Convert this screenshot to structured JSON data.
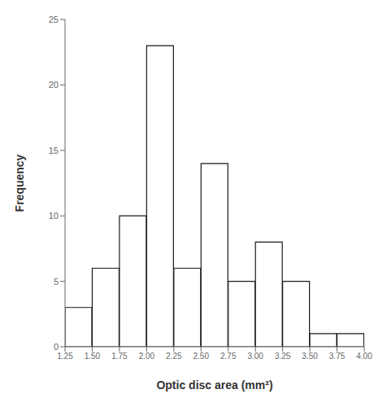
{
  "chart_data": {
    "type": "histogram",
    "xlabel": "Optic disc area (mm²)",
    "ylabel": "Frequency",
    "bins": [
      1.25,
      1.5,
      1.75,
      2.0,
      2.25,
      2.5,
      2.75,
      3.0,
      3.25,
      3.5,
      3.75,
      4.0
    ],
    "values": [
      3,
      6,
      10,
      23,
      6,
      14,
      5,
      8,
      5,
      1,
      1
    ],
    "color": "#ffffff",
    "xlim": [
      1.25,
      4.0
    ],
    "ylim": [
      0,
      25
    ],
    "xticks": [
      1.25,
      {
        "value": 1.5,
        "label": "1.50"
      },
      1.75,
      {
        "value": 2.0,
        "label": "2.00"
      },
      2.25,
      {
        "value": 2.5,
        "label": "2.50"
      },
      2.75,
      {
        "value": 3.0,
        "label": "3.00"
      },
      3.25,
      {
        "value": 3.5,
        "label": "3.50"
      },
      3.75,
      {
        "value": 4.0,
        "label": "4.00"
      }
    ],
    "yticks": [
      0,
      5,
      10,
      15,
      20,
      25
    ]
  }
}
